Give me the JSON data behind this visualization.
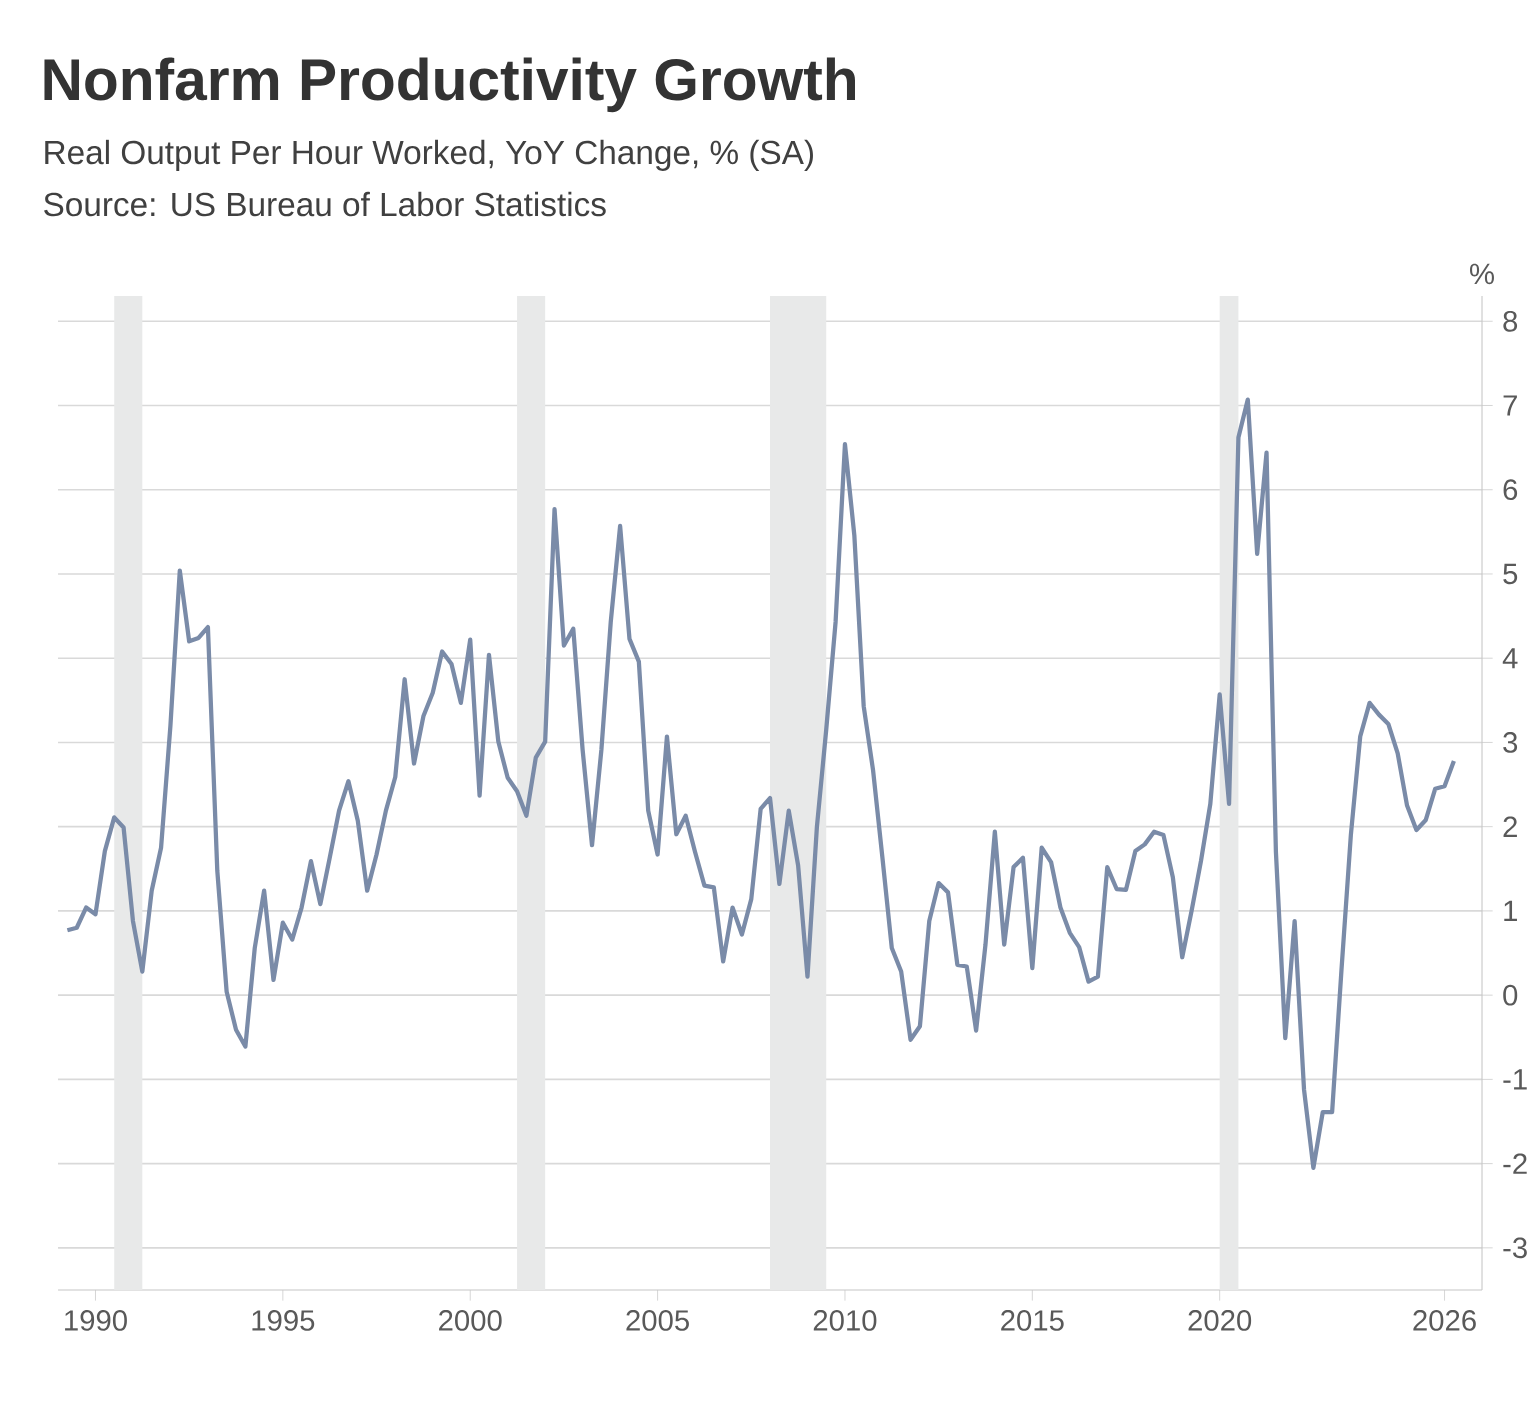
{
  "chart_data": {
    "type": "line",
    "title": "Nonfarm Productivity Growth",
    "subtitle": "Real Output Per Hour Worked, YoY Change, % (SA)",
    "annotations": [
      "Source: US Bureau of Labor Statistics"
    ],
    "ylabel": "%",
    "x": [
      1989.25,
      1989.5,
      1989.75,
      1990,
      1990.25,
      1990.5,
      1990.75,
      1991,
      1991.25,
      1991.5,
      1991.75,
      1992,
      1992.25,
      1992.5,
      1992.75,
      1993,
      1993.25,
      1993.5,
      1993.75,
      1994,
      1994.25,
      1994.5,
      1994.75,
      1995,
      1995.25,
      1995.5,
      1995.75,
      1996,
      1996.25,
      1996.5,
      1996.75,
      1997,
      1997.25,
      1997.5,
      1997.75,
      1998,
      1998.25,
      1998.5,
      1998.75,
      1999,
      1999.25,
      1999.5,
      1999.75,
      2000,
      2000.25,
      2000.5,
      2000.75,
      2001,
      2001.25,
      2001.5,
      2001.75,
      2002,
      2002.25,
      2002.5,
      2002.75,
      2003,
      2003.25,
      2003.5,
      2003.75,
      2004,
      2004.25,
      2004.5,
      2004.75,
      2005,
      2005.25,
      2005.5,
      2005.75,
      2006,
      2006.25,
      2006.5,
      2006.75,
      2007,
      2007.25,
      2007.5,
      2007.75,
      2008,
      2008.25,
      2008.5,
      2008.75,
      2009,
      2009.25,
      2009.5,
      2009.75,
      2010,
      2010.25,
      2010.5,
      2010.75,
      2011,
      2011.25,
      2011.5,
      2011.75,
      2012,
      2012.25,
      2012.5,
      2012.75,
      2013,
      2013.25,
      2013.5,
      2013.75,
      2014,
      2014.25,
      2014.5,
      2014.75,
      2015,
      2015.25,
      2015.5,
      2015.75,
      2016,
      2016.25,
      2016.5,
      2016.75,
      2017,
      2017.25,
      2017.5,
      2017.75,
      2018,
      2018.25,
      2018.5,
      2018.75,
      2019,
      2019.25,
      2019.5,
      2019.75,
      2020,
      2020.25,
      2020.5,
      2020.75,
      2021,
      2021.25,
      2021.5,
      2021.75,
      2022,
      2022.25,
      2022.5,
      2022.75,
      2023,
      2023.25,
      2023.5,
      2023.75,
      2024,
      2024.25,
      2024.5,
      2024.75,
      2025,
      2025.25,
      2025.5,
      2025.75,
      2026,
      2026.25
    ],
    "series": [
      {
        "color": "#7a8ba8",
        "values": [
          0.77,
          0.8,
          1.04,
          0.96,
          1.71,
          2.11,
          1.99,
          0.88,
          0.28,
          1.24,
          1.75,
          3.2,
          5.04,
          4.2,
          4.24,
          4.37,
          1.48,
          0.04,
          -0.41,
          -0.61,
          0.56,
          1.24,
          0.18,
          0.86,
          0.66,
          1.04,
          1.59,
          1.08,
          1.63,
          2.19,
          2.54,
          2.07,
          1.24,
          1.67,
          2.19,
          2.59,
          3.75,
          2.75,
          3.31,
          3.59,
          4.08,
          3.93,
          3.47,
          4.22,
          2.37,
          4.04,
          3.01,
          2.58,
          2.42,
          2.13,
          2.82,
          3.01,
          5.77,
          4.15,
          4.35,
          2.91,
          1.78,
          2.91,
          4.43,
          5.57,
          4.23,
          3.96,
          2.19,
          1.67,
          3.07,
          1.91,
          2.13,
          1.7,
          1.3,
          1.28,
          0.4,
          1.04,
          0.72,
          1.14,
          2.21,
          2.34,
          1.32,
          2.19,
          1.54,
          0.22,
          1.99,
          3.15,
          4.43,
          6.54,
          5.46,
          3.43,
          2.67,
          1.63,
          0.56,
          0.28,
          -0.53,
          -0.37,
          0.88,
          1.33,
          1.22,
          0.36,
          0.34,
          -0.42,
          0.6,
          1.94,
          0.6,
          1.52,
          1.63,
          0.32,
          1.75,
          1.58,
          1.04,
          0.74,
          0.57,
          0.16,
          0.22,
          1.52,
          1.26,
          1.25,
          1.71,
          1.79,
          1.94,
          1.9,
          1.4,
          0.45,
          1.0,
          1.59,
          2.27,
          3.57,
          2.27,
          6.62,
          7.07,
          5.24,
          6.44,
          1.7,
          -0.51,
          0.88,
          -1.12,
          -2.05,
          -1.39,
          -1.39,
          0.3,
          1.9,
          3.07,
          3.47,
          3.33,
          3.22,
          2.87,
          2.25,
          1.96,
          2.08,
          2.45,
          2.48,
          2.78
        ]
      }
    ],
    "xlim": [
      1989,
      2027
    ],
    "ylim": [
      -3.5,
      8.3
    ],
    "xticks": [
      1990,
      1995,
      2000,
      2005,
      2010,
      2015,
      2020,
      2026
    ],
    "yticks": [
      -3,
      -2,
      -1,
      0,
      1,
      2,
      3,
      4,
      5,
      6,
      7,
      8
    ],
    "grid": "y",
    "bands": [
      {
        "axis": "x",
        "from": 1990.5,
        "to": 1991.25,
        "color": "#e8e9e9"
      },
      {
        "axis": "x",
        "from": 2001.25,
        "to": 2002,
        "color": "#e8e9e9"
      },
      {
        "axis": "x",
        "from": 2008,
        "to": 2009.5,
        "color": "#e8e9e9"
      },
      {
        "axis": "x",
        "from": 2020,
        "to": 2020.5,
        "color": "#e8e9e9"
      }
    ]
  }
}
